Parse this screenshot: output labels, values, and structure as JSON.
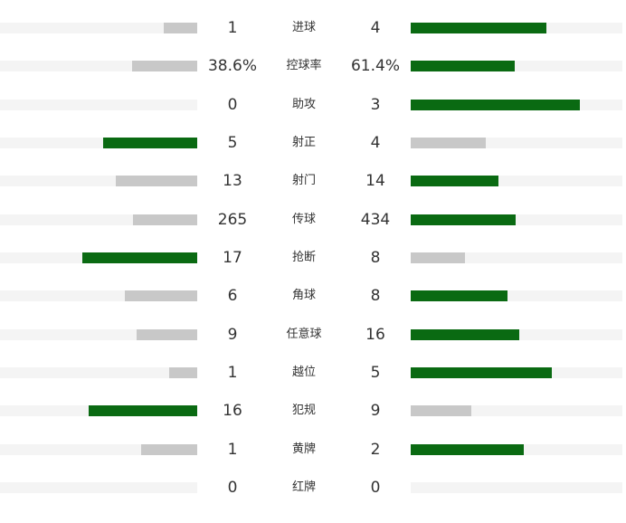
{
  "stats": {
    "win_color": "#0a6a12",
    "lose_color": "#c8c8c8",
    "track_color": "#f4f4f4",
    "rows": [
      {
        "label": "进球",
        "home": 1,
        "away": 4
      },
      {
        "label": "控球率",
        "home": 38.6,
        "away": 61.4,
        "home_label": "38.6%",
        "away_label": "61.4%"
      },
      {
        "label": "助攻",
        "home": 0,
        "away": 3
      },
      {
        "label": "射正",
        "home": 5,
        "away": 4
      },
      {
        "label": "射门",
        "home": 13,
        "away": 14
      },
      {
        "label": "传球",
        "home": 265,
        "away": 434
      },
      {
        "label": "抢断",
        "home": 17,
        "away": 8
      },
      {
        "label": "角球",
        "home": 6,
        "away": 8
      },
      {
        "label": "任意球",
        "home": 9,
        "away": 16
      },
      {
        "label": "越位",
        "home": 1,
        "away": 5
      },
      {
        "label": "犯规",
        "home": 16,
        "away": 9
      },
      {
        "label": "黄牌",
        "home": 1,
        "away": 2
      },
      {
        "label": "红牌",
        "home": 0,
        "away": 0
      }
    ]
  }
}
